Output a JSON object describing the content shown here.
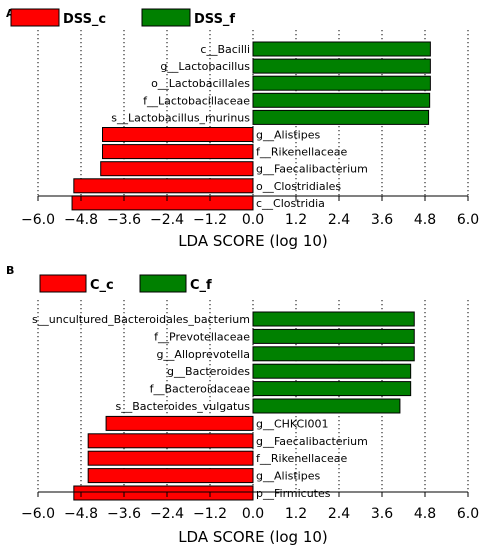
{
  "chart_data": [
    {
      "panel_label": "A",
      "type": "bar",
      "orientation": "horizontal",
      "legend": [
        {
          "name": "DSS_c",
          "color": "#ff0000"
        },
        {
          "name": "DSS_f",
          "color": "#008000"
        }
      ],
      "legend_position": "top-left",
      "categories": [
        "c__Bacilli",
        "g__Lactobacillus",
        "o__Lactobacillales",
        "f__Lactobacillaceae",
        "s__Lactobacillus_murinus",
        "g__Alistipes",
        "f__Rikenellaceae",
        "g__Faecalibacterium",
        "o__Clostridiales",
        "c__Clostridia"
      ],
      "values": [
        4.95,
        4.95,
        4.95,
        4.93,
        4.9,
        -4.2,
        -4.2,
        -4.25,
        -5.0,
        -5.05
      ],
      "groups": [
        "DSS_f",
        "DSS_f",
        "DSS_f",
        "DSS_f",
        "DSS_f",
        "DSS_c",
        "DSS_c",
        "DSS_c",
        "DSS_c",
        "DSS_c"
      ],
      "xlabel": "LDA SCORE (log 10)",
      "xlim": [
        -6.0,
        6.0
      ],
      "xticks": [
        "−6.0",
        "−4.8",
        "−3.6",
        "−2.4",
        "−1.2",
        "0.0",
        "1.2",
        "2.4",
        "3.6",
        "4.8",
        "6.0"
      ],
      "grid": "vertical dotted"
    },
    {
      "panel_label": "B",
      "type": "bar",
      "orientation": "horizontal",
      "legend": [
        {
          "name": "C_c",
          "color": "#ff0000"
        },
        {
          "name": "C_f",
          "color": "#008000"
        }
      ],
      "legend_position": "top-left",
      "categories": [
        "s__uncultured_Bacteroidales_bacterium",
        "f__Prevotellaceae",
        "g__Alloprevotella",
        "g__Bacteroides",
        "f__Bacteroidaceae",
        "s__Bacteroides_vulgatus",
        "g__CHKCI001",
        "g__Faecalibacterium",
        "f__Rikenellaceae",
        "g__Alistipes",
        "p__Firmicutes"
      ],
      "values": [
        4.5,
        4.5,
        4.5,
        4.4,
        4.4,
        4.1,
        -4.1,
        -4.6,
        -4.6,
        -4.6,
        -5.0
      ],
      "groups": [
        "C_f",
        "C_f",
        "C_f",
        "C_f",
        "C_f",
        "C_f",
        "C_c",
        "C_c",
        "C_c",
        "C_c",
        "C_c"
      ],
      "xlabel": "LDA SCORE (log 10)",
      "xlim": [
        -6.0,
        6.0
      ],
      "xticks": [
        "−6.0",
        "−4.8",
        "−3.6",
        "−2.4",
        "−1.2",
        "0.0",
        "1.2",
        "2.4",
        "3.6",
        "4.8",
        "6.0"
      ],
      "grid": "vertical dotted"
    }
  ]
}
